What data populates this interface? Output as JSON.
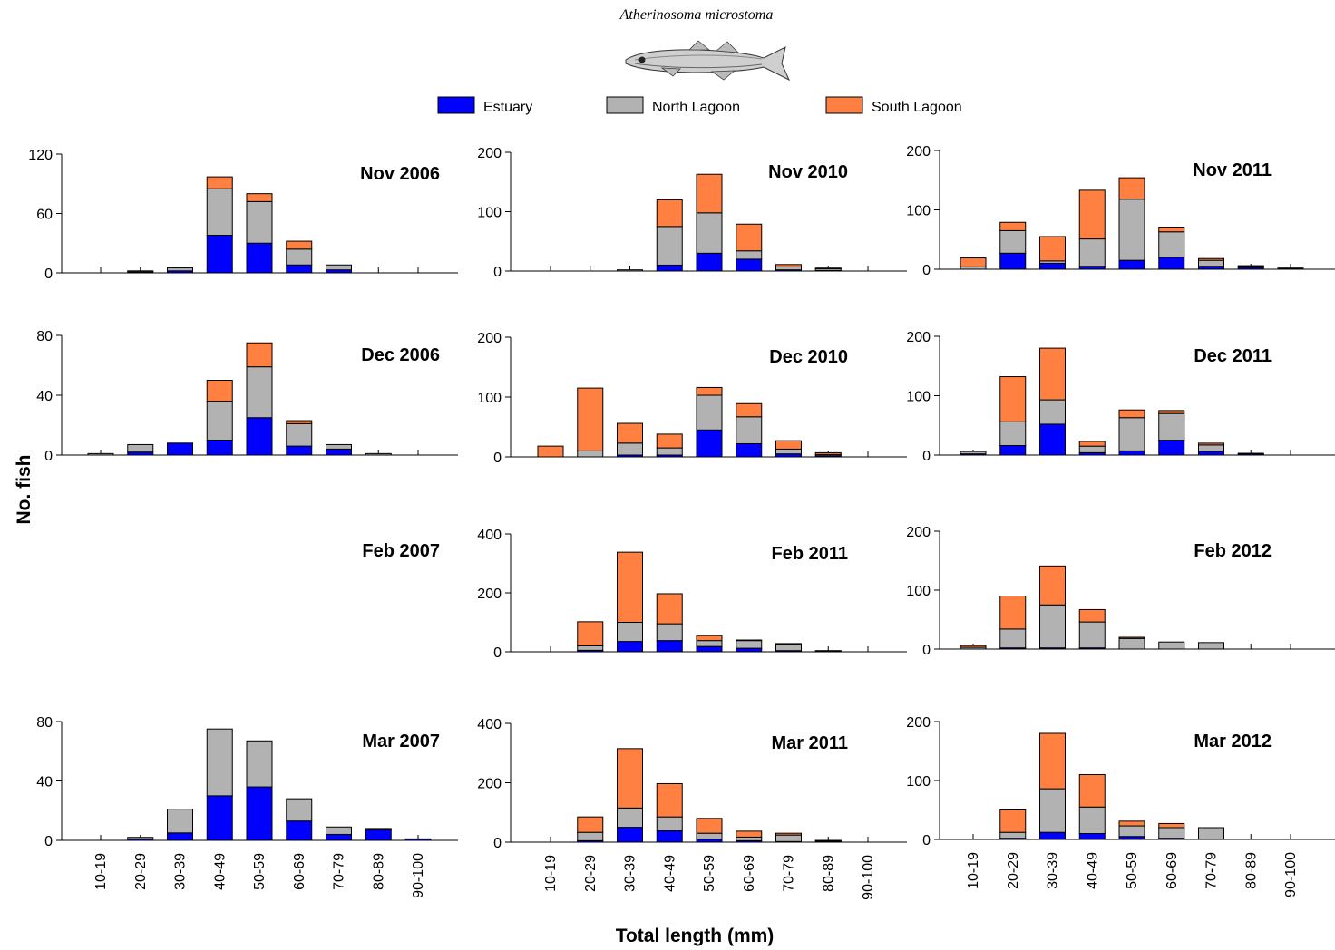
{
  "species": "Atherinosoma microstoma",
  "legend": [
    {
      "label": "Estuary",
      "color": "#0000ff"
    },
    {
      "label": "North Lagoon",
      "color": "#b2b2b2"
    },
    {
      "label": "South Lagoon",
      "color": "#ff8040"
    }
  ],
  "ylabel": "No. fish",
  "xlabel": "Total length (mm)",
  "chart_data": {
    "type": "bar",
    "stacked": true,
    "categories": [
      "10-19",
      "20-29",
      "30-39",
      "40-49",
      "50-59",
      "60-69",
      "70-79",
      "80-89",
      "90-100"
    ],
    "series_names": [
      "Estuary",
      "North Lagoon",
      "South Lagoon"
    ],
    "panels": [
      {
        "title": "Nov 2006",
        "ylim": [
          0,
          120
        ],
        "yticks": [
          0,
          60,
          120
        ],
        "estuary": [
          0,
          1,
          2,
          38,
          30,
          8,
          3,
          0,
          0
        ],
        "north": [
          0,
          1,
          3,
          47,
          42,
          16,
          5,
          0,
          0
        ],
        "south": [
          0,
          0,
          0,
          12,
          8,
          8,
          0,
          0,
          0
        ]
      },
      {
        "title": "Nov 2010",
        "ylim": [
          0,
          200
        ],
        "yticks": [
          0,
          100,
          200
        ],
        "estuary": [
          0,
          0,
          0,
          10,
          30,
          20,
          2,
          1,
          0
        ],
        "north": [
          0,
          0,
          2,
          65,
          68,
          14,
          5,
          3,
          0
        ],
        "south": [
          0,
          0,
          0,
          45,
          65,
          45,
          4,
          1,
          0
        ]
      },
      {
        "title": "Nov 2011",
        "ylim": [
          0,
          200
        ],
        "yticks": [
          0,
          100,
          200
        ],
        "estuary": [
          0,
          27,
          10,
          5,
          15,
          20,
          5,
          3,
          0
        ],
        "north": [
          4,
          38,
          4,
          46,
          103,
          43,
          10,
          2,
          1
        ],
        "south": [
          15,
          14,
          41,
          82,
          36,
          8,
          3,
          1,
          1
        ]
      },
      {
        "title": "Dec 2006",
        "ylim": [
          0,
          80
        ],
        "yticks": [
          0,
          40,
          80
        ],
        "estuary": [
          0,
          2,
          8,
          10,
          25,
          6,
          4,
          0,
          0
        ],
        "north": [
          1,
          5,
          0,
          26,
          34,
          15,
          3,
          1,
          0
        ],
        "south": [
          0,
          0,
          0,
          14,
          16,
          2,
          0,
          0,
          0
        ]
      },
      {
        "title": "Dec 2010",
        "ylim": [
          0,
          200
        ],
        "yticks": [
          0,
          100,
          200
        ],
        "estuary": [
          0,
          0,
          3,
          3,
          45,
          22,
          5,
          2,
          0
        ],
        "north": [
          0,
          10,
          20,
          12,
          58,
          45,
          8,
          2,
          0
        ],
        "south": [
          18,
          105,
          33,
          23,
          13,
          22,
          14,
          3,
          0
        ]
      },
      {
        "title": "Dec 2011",
        "ylim": [
          0,
          200
        ],
        "yticks": [
          0,
          100,
          200
        ],
        "estuary": [
          2,
          16,
          52,
          4,
          7,
          25,
          6,
          2,
          0
        ],
        "north": [
          4,
          40,
          41,
          11,
          56,
          45,
          11,
          1,
          0
        ],
        "south": [
          0,
          76,
          87,
          8,
          13,
          5,
          3,
          0,
          0
        ]
      },
      {
        "title": "Feb 2007",
        "ylim": null,
        "yticks": [],
        "estuary": [
          0,
          0,
          0,
          0,
          0,
          0,
          0,
          0,
          0
        ],
        "north": [
          0,
          0,
          0,
          0,
          0,
          0,
          0,
          0,
          0
        ],
        "south": [
          0,
          0,
          0,
          0,
          0,
          0,
          0,
          0,
          0
        ]
      },
      {
        "title": "Feb 2011",
        "ylim": [
          0,
          400
        ],
        "yticks": [
          0,
          200,
          400
        ],
        "estuary": [
          0,
          5,
          35,
          38,
          18,
          12,
          4,
          2,
          0
        ],
        "north": [
          0,
          15,
          65,
          57,
          20,
          26,
          23,
          2,
          0
        ],
        "south": [
          0,
          82,
          238,
          102,
          17,
          2,
          1,
          0,
          0
        ]
      },
      {
        "title": "Feb 2012",
        "ylim": [
          0,
          200
        ],
        "yticks": [
          0,
          100,
          200
        ],
        "estuary": [
          0,
          2,
          2,
          2,
          0,
          0,
          0,
          0,
          0
        ],
        "north": [
          3,
          32,
          73,
          44,
          18,
          12,
          11,
          0,
          0
        ],
        "south": [
          3,
          56,
          66,
          21,
          2,
          0,
          0,
          0,
          0
        ]
      },
      {
        "title": "Mar 2007",
        "ylim": [
          0,
          80
        ],
        "yticks": [
          0,
          40,
          80
        ],
        "estuary": [
          0,
          1,
          5,
          30,
          36,
          13,
          4,
          7,
          1
        ],
        "north": [
          0,
          1,
          16,
          45,
          31,
          15,
          5,
          1,
          0
        ],
        "south": [
          0,
          0,
          0,
          0,
          0,
          0,
          0,
          0,
          0
        ]
      },
      {
        "title": "Mar 2011",
        "ylim": [
          0,
          400
        ],
        "yticks": [
          0,
          200,
          400
        ],
        "estuary": [
          0,
          5,
          50,
          38,
          10,
          5,
          2,
          2,
          0
        ],
        "north": [
          0,
          28,
          65,
          47,
          20,
          12,
          22,
          3,
          0
        ],
        "south": [
          0,
          52,
          200,
          112,
          50,
          20,
          6,
          1,
          0
        ]
      },
      {
        "title": "Mar 2012",
        "ylim": [
          0,
          200
        ],
        "yticks": [
          0,
          100,
          200
        ],
        "estuary": [
          0,
          2,
          12,
          10,
          5,
          2,
          0,
          0,
          0
        ],
        "north": [
          0,
          10,
          74,
          45,
          18,
          18,
          20,
          0,
          0
        ],
        "south": [
          0,
          38,
          94,
          55,
          8,
          7,
          0,
          0,
          0
        ]
      }
    ]
  }
}
